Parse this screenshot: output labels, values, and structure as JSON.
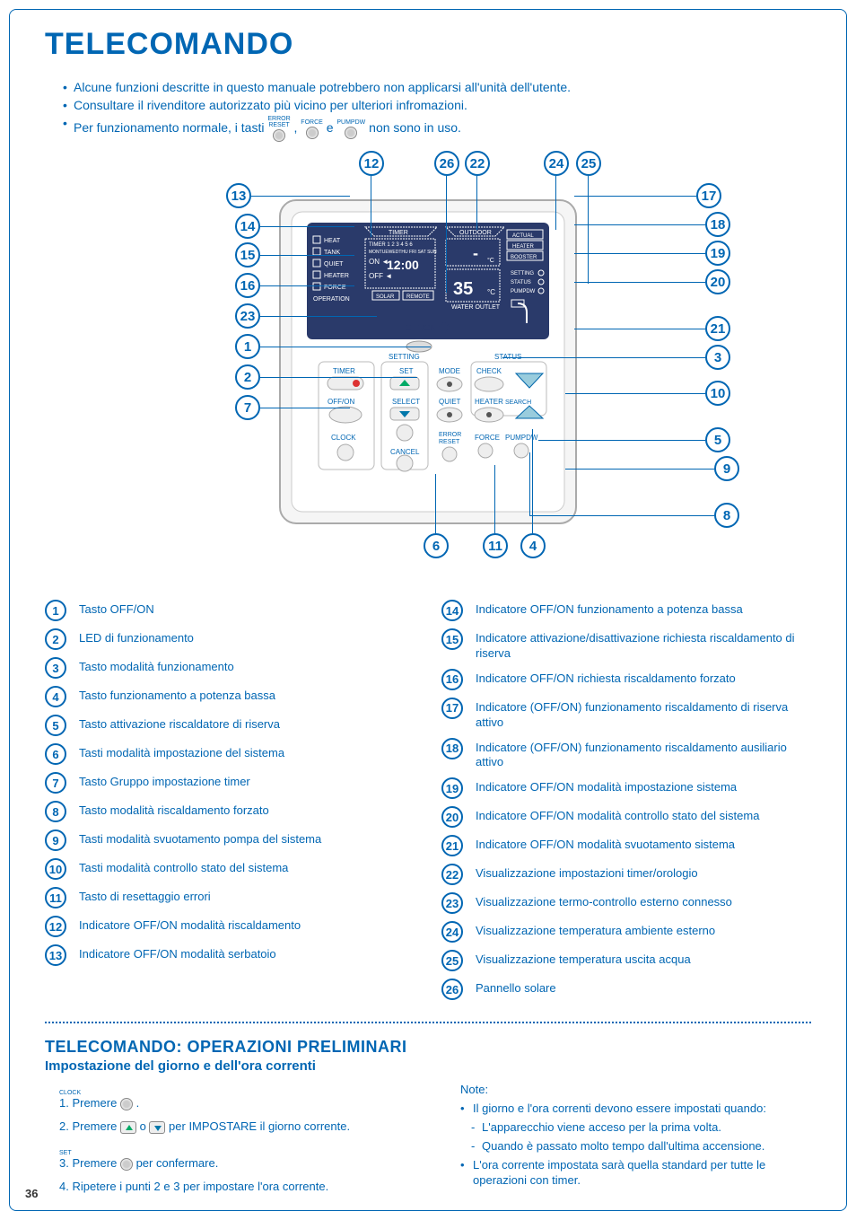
{
  "title": "TELECOMANDO",
  "intro": {
    "line1": "Alcune funzioni descritte in questo manuale potrebbero non applicarsi all'unità dell'utente.",
    "line2": "Consultare il rivenditore autorizzato più vicino per ulteriori infromazioni.",
    "line3_a": "Per funzionamento normale, i tasti",
    "line3_b": ",",
    "line3_c": "e",
    "line3_d": "non sono in uso.",
    "btn1_top": "ERROR",
    "btn1_bot": "RESET",
    "btn2": "FORCE",
    "btn3": "PUMPDW"
  },
  "callouts": {
    "top": [
      "12",
      "26",
      "22",
      "24",
      "25"
    ],
    "left": [
      "13",
      "14",
      "15",
      "16",
      "23",
      "1",
      "2",
      "7"
    ],
    "right": [
      "17",
      "18",
      "19",
      "20",
      "21",
      "3",
      "10",
      "5",
      "9",
      "8"
    ],
    "bottom": [
      "6",
      "11",
      "4"
    ]
  },
  "remote": {
    "lcd_labels": {
      "heat": "HEAT",
      "tank": "TANK",
      "quiet": "QUIET",
      "heater": "HEATER",
      "force": "FORCE",
      "operation": "OPERATION",
      "timer_hdr": "TIMER",
      "outdoor": "OUTDOOR",
      "timer_nums": "TIMER 1 2 3 4 5 6",
      "days": "MONTUEWEDTHU FRI SAT SUN",
      "on": "ON",
      "off": "OFF",
      "time": "12:00",
      "solar": "SOLAR",
      "remote": "REMOTE",
      "water_outlet": "WATER OUTLET",
      "off_on": "OFF/ON",
      "temp": "35",
      "degc": "°C",
      "actual": "ACTUAL",
      "r_heater": "HEATER",
      "booster": "BOOSTER",
      "setting": "SETTING",
      "status": "STATUS",
      "pumpdw": "PUMPDW"
    },
    "buttons": {
      "timer": "TIMER",
      "off_on_btn": "OFF/ON",
      "clock": "CLOCK",
      "setting_hdr": "SETTING",
      "set": "SET",
      "select": "SELECT",
      "cancel": "CANCEL",
      "mode": "MODE",
      "quiet_b": "QUIET",
      "error_reset": "ERROR\nRESET",
      "status_hdr": "STATUS",
      "check": "CHECK",
      "heater_b": "HEATER",
      "search": "SEARCH",
      "force_b": "FORCE",
      "pumpdw_b": "PUMPDW"
    }
  },
  "legend": {
    "left": [
      {
        "n": "1",
        "t": "Tasto OFF/ON"
      },
      {
        "n": "2",
        "t": "LED di funzionamento"
      },
      {
        "n": "3",
        "t": "Tasto modalità funzionamento"
      },
      {
        "n": "4",
        "t": "Tasto funzionamento a potenza bassa"
      },
      {
        "n": "5",
        "t": "Tasto attivazione riscaldatore di riserva"
      },
      {
        "n": "6",
        "t": "Tasti modalità impostazione del sistema"
      },
      {
        "n": "7",
        "t": "Tasto Gruppo impostazione timer"
      },
      {
        "n": "8",
        "t": "Tasto modalità riscaldamento forzato"
      },
      {
        "n": "9",
        "t": "Tasti modalità svuotamento pompa del sistema"
      },
      {
        "n": "10",
        "t": "Tasti modalità controllo stato del sistema"
      },
      {
        "n": "11",
        "t": "Tasto di resettaggio errori"
      },
      {
        "n": "12",
        "t": "Indicatore OFF/ON modalità riscaldamento"
      },
      {
        "n": "13",
        "t": "Indicatore OFF/ON modalità serbatoio"
      }
    ],
    "right": [
      {
        "n": "14",
        "t": "Indicatore OFF/ON funzionamento a potenza bassa"
      },
      {
        "n": "15",
        "t": "Indicatore attivazione/disattivazione richiesta riscaldamento di riserva"
      },
      {
        "n": "16",
        "t": "Indicatore OFF/ON richiesta riscaldamento forzato"
      },
      {
        "n": "17",
        "t": "Indicatore (OFF/ON) funzionamento riscaldamento di riserva attivo"
      },
      {
        "n": "18",
        "t": "Indicatore (OFF/ON) funzionamento riscaldamento ausiliario attivo"
      },
      {
        "n": "19",
        "t": "Indicatore OFF/ON modalità impostazione sistema"
      },
      {
        "n": "20",
        "t": "Indicatore OFF/ON modalità controllo stato del sistema"
      },
      {
        "n": "21",
        "t": "Indicatore OFF/ON modalità svuotamento sistema"
      },
      {
        "n": "22",
        "t": "Visualizzazione impostazioni timer/orologio"
      },
      {
        "n": "23",
        "t": "Visualizzazione termo-controllo esterno connesso"
      },
      {
        "n": "24",
        "t": "Visualizzazione temperatura ambiente esterno"
      },
      {
        "n": "25",
        "t": "Visualizzazione temperatura uscita acqua"
      },
      {
        "n": "26",
        "t": "Pannello solare"
      }
    ]
  },
  "prelim": {
    "h2": "TELECOMANDO: OPERAZIONI PRELIMINARI",
    "sub": "Impostazione del giorno e dell'ora correnti",
    "clock_label": "CLOCK",
    "set_label": "SET",
    "step1_a": "1. Premere",
    "step1_b": ".",
    "step2_a": "2. Premere",
    "step2_b": "o",
    "step2_c": "per IMPOSTARE il giorno corrente.",
    "step3_a": "3. Premere",
    "step3_b": "per confermare.",
    "step4": "4. Ripetere i punti 2 e 3 per impostare l'ora corrente.",
    "note_title": "Note:",
    "note1": "Il giorno e l'ora correnti devono essere impostati quando:",
    "note1a": "L'apparecchio viene acceso per la prima volta.",
    "note1b": "Quando è passato molto tempo dall'ultima accensione.",
    "note2": "L'ora corrente impostata sarà quella standard per tutte le operazioni con timer."
  },
  "page_number": "36",
  "colors": {
    "primary": "#0066b3",
    "lcd_bg": "#2a3a6a",
    "lcd_fg": "#ffffff"
  }
}
